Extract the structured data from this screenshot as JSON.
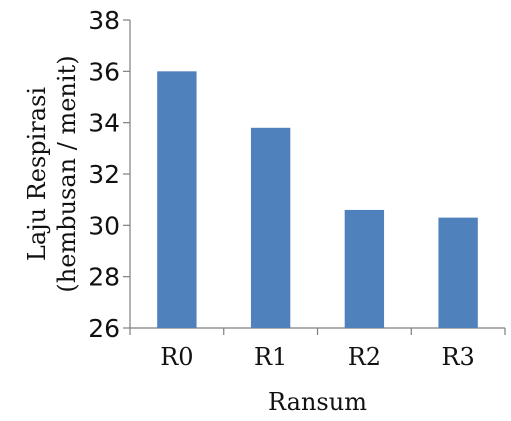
{
  "chart_data": {
    "type": "bar",
    "title": "",
    "categories": [
      "R0",
      "R1",
      "R2",
      "R3"
    ],
    "values": [
      36.0,
      33.8,
      30.6,
      30.3
    ],
    "xlabel": "Ransum",
    "ylabel_lines": [
      "Laju Respirasi",
      "(hembusan / menit)"
    ],
    "ylim": [
      26,
      38
    ],
    "yticks": [
      26,
      28,
      30,
      32,
      34,
      36,
      38
    ],
    "grid": false,
    "legend": "none",
    "bar_color": "#4f81bd"
  }
}
